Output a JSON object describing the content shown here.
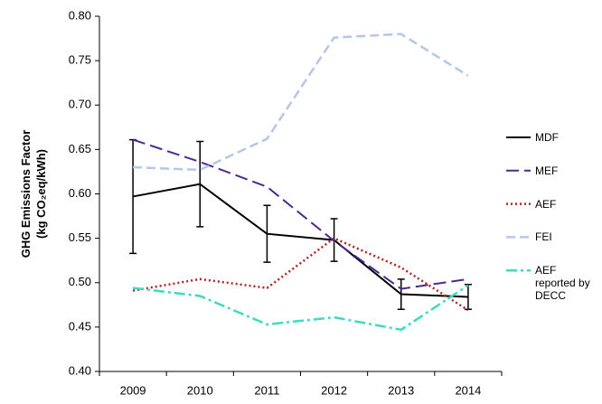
{
  "chart_data": {
    "type": "line",
    "y_label": [
      "GHG Emissions Factor",
      "(kg CO₂eq/kWh)"
    ],
    "categories": [
      "2009",
      "2010",
      "2011",
      "2012",
      "2013",
      "2014"
    ],
    "series": [
      {
        "name": "MDF",
        "color": "#000000",
        "dash": "solid",
        "values": [
          0.597,
          0.611,
          0.555,
          0.548,
          0.487,
          0.484
        ],
        "errors": [
          0.064,
          0.048,
          0.032,
          0.024,
          0.017,
          0.014
        ]
      },
      {
        "name": "MEF",
        "color": "#4b2a8f",
        "dash": "long-dash",
        "values": [
          0.661,
          0.636,
          0.608,
          0.547,
          0.493,
          0.504
        ]
      },
      {
        "name": "AEF",
        "color": "#b22222",
        "dash": "dot",
        "values": [
          0.491,
          0.504,
          0.494,
          0.55,
          0.517,
          0.469
        ]
      },
      {
        "name": "FEI",
        "color": "#b4c7e7",
        "dash": "dash",
        "values": [
          0.63,
          0.627,
          0.662,
          0.776,
          0.78,
          0.733
        ]
      },
      {
        "name": "AEF reported by DECC",
        "color": "#3dd9c1",
        "dash": "dash-dot",
        "values": [
          0.494,
          0.485,
          0.453,
          0.461,
          0.447,
          0.497
        ]
      }
    ],
    "ylim": [
      0.4,
      0.8
    ],
    "yticks": [
      {
        "value": 0.4,
        "label": "0.40"
      },
      {
        "value": 0.45,
        "label": "0.45"
      },
      {
        "value": 0.5,
        "label": "0.50"
      },
      {
        "value": 0.55,
        "label": "0.55"
      },
      {
        "value": 0.6,
        "label": "0.60"
      },
      {
        "value": 0.65,
        "label": "0.65"
      },
      {
        "value": 0.7,
        "label": "0.70"
      },
      {
        "value": 0.75,
        "label": "0.75"
      },
      {
        "value": 0.8,
        "label": "0.80"
      }
    ],
    "grid": false,
    "legend": "right"
  }
}
